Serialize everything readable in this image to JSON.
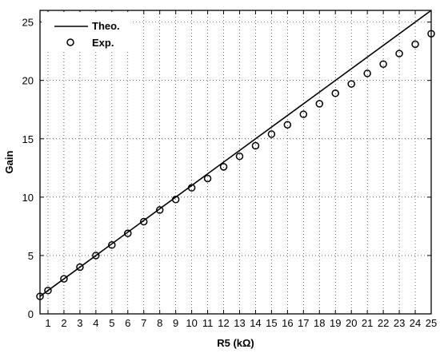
{
  "chart_data": {
    "type": "line",
    "xlabel": "R5 (kΩ)",
    "ylabel": "Gain",
    "xlim": [
      0.5,
      25
    ],
    "ylim": [
      0,
      26
    ],
    "x_ticks": [
      1,
      2,
      3,
      4,
      5,
      6,
      7,
      8,
      9,
      10,
      11,
      12,
      13,
      14,
      15,
      16,
      17,
      18,
      19,
      20,
      21,
      22,
      23,
      24,
      25
    ],
    "y_ticks": [
      0,
      5,
      10,
      15,
      20,
      25
    ],
    "grid": true,
    "legend_position": "top-left",
    "series": [
      {
        "name": "Theo.",
        "style": "line",
        "color": "#000000",
        "x": [
          0.5,
          25
        ],
        "y": [
          1.5,
          26
        ]
      },
      {
        "name": "Exp.",
        "style": "circle-markers",
        "color": "#000000",
        "x": [
          0.5,
          1,
          2,
          3,
          4,
          5,
          6,
          7,
          8,
          9,
          10,
          11,
          12,
          13,
          14,
          15,
          16,
          17,
          18,
          19,
          20,
          21,
          22,
          23,
          24,
          25
        ],
        "y": [
          1.5,
          2.0,
          3.0,
          4.0,
          5.0,
          5.9,
          6.9,
          7.9,
          8.9,
          9.8,
          10.8,
          11.6,
          12.6,
          13.5,
          14.4,
          15.4,
          16.2,
          17.1,
          18.0,
          18.9,
          19.7,
          20.6,
          21.4,
          22.3,
          23.1,
          24.0
        ]
      }
    ]
  }
}
